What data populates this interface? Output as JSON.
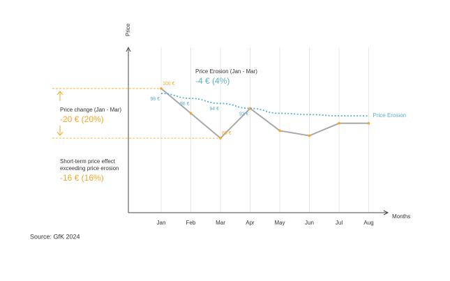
{
  "chart_data": {
    "type": "line",
    "y_label": "Price",
    "x_label": "Months",
    "categories": [
      "Jan",
      "Feb",
      "Mar",
      "Apr",
      "May",
      "Jun",
      "Jul",
      "Aug"
    ],
    "ylim": [
      50,
      123
    ],
    "grid": true,
    "series": [
      {
        "color": "#a8a8a8",
        "point_color": "#f5a623",
        "style": "solid",
        "values": [
          100,
          90,
          80,
          92,
          83,
          81,
          86,
          86
        ],
        "value_labels": [
          "100 €",
          null,
          "80 €",
          null,
          null,
          null,
          null,
          null
        ]
      },
      {
        "name": "Price Erosion",
        "color": "#5aafc9",
        "style": "dotted",
        "values": [
          98,
          96,
          94,
          92,
          90,
          89.5,
          89,
          89
        ],
        "value_labels": [
          "98 €",
          "96 €",
          "94 €",
          "92 €",
          null,
          null,
          null,
          null
        ]
      }
    ],
    "annotations": [
      {
        "title": [
          "Price Erosion (Jan - Mar)"
        ],
        "value": "-4 € (4%)",
        "color": "#5aafc9"
      },
      {
        "title": [
          "Price change (Jan - Mar)"
        ],
        "value": "-20 € (20%)",
        "color": "#f5a623"
      },
      {
        "title": [
          "Short-term price effect",
          "exceeding price erosion"
        ],
        "value": "-16 € (16%)",
        "color": "#f5a623"
      }
    ],
    "source": "Source: GfK 2024"
  }
}
